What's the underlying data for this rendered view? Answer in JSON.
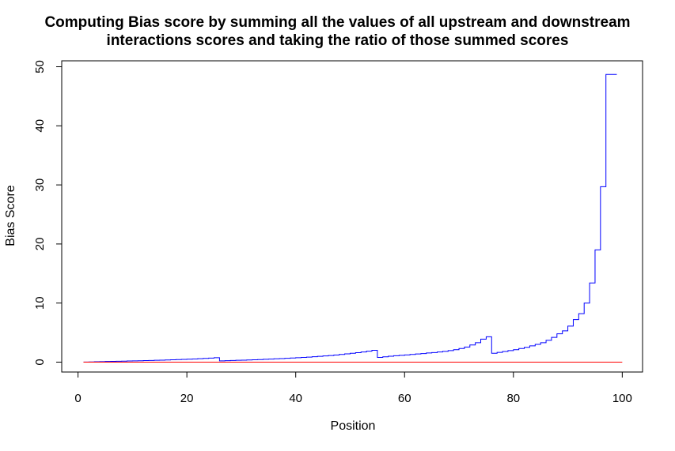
{
  "chart_data": {
    "type": "line",
    "title": [
      "Computing Bias score by summing all the values of all upstream and downstream",
      "interactions scores and taking the ratio of those summed scores"
    ],
    "xlabel": "Position",
    "ylabel": "Bias Score",
    "xlim": [
      1,
      100
    ],
    "ylim": [
      0,
      50
    ],
    "x_ticks": [
      0,
      20,
      40,
      60,
      80,
      100
    ],
    "y_ticks": [
      0,
      10,
      20,
      30,
      40,
      50
    ],
    "grid": false,
    "series": [
      {
        "color": "#0000ff",
        "step": true,
        "x": [
          1,
          2,
          3,
          4,
          5,
          6,
          7,
          8,
          9,
          10,
          11,
          12,
          13,
          14,
          15,
          16,
          17,
          18,
          19,
          20,
          21,
          22,
          23,
          24,
          25,
          26,
          27,
          28,
          29,
          30,
          31,
          32,
          33,
          34,
          35,
          36,
          37,
          38,
          39,
          40,
          41,
          42,
          43,
          44,
          45,
          46,
          47,
          48,
          49,
          50,
          51,
          52,
          53,
          54,
          55,
          56,
          57,
          58,
          59,
          60,
          61,
          62,
          63,
          64,
          65,
          66,
          67,
          68,
          69,
          70,
          71,
          72,
          73,
          74,
          75,
          76,
          77,
          78,
          79,
          80,
          81,
          82,
          83,
          84,
          85,
          86,
          87,
          88,
          89,
          90,
          91,
          92,
          93,
          94,
          95,
          96,
          97,
          98,
          99
        ],
        "y": [
          0.02,
          0.04,
          0.07,
          0.09,
          0.11,
          0.13,
          0.15,
          0.17,
          0.2,
          0.22,
          0.24,
          0.26,
          0.29,
          0.31,
          0.34,
          0.37,
          0.4,
          0.43,
          0.46,
          0.5,
          0.54,
          0.58,
          0.63,
          0.68,
          0.75,
          0.22,
          0.25,
          0.28,
          0.31,
          0.34,
          0.37,
          0.4,
          0.44,
          0.48,
          0.52,
          0.56,
          0.6,
          0.65,
          0.7,
          0.75,
          0.8,
          0.86,
          0.92,
          0.98,
          1.05,
          1.12,
          1.2,
          1.3,
          1.4,
          1.5,
          1.6,
          1.72,
          1.85,
          2.0,
          0.8,
          0.9,
          1.0,
          1.08,
          1.15,
          1.22,
          1.3,
          1.38,
          1.45,
          1.55,
          1.62,
          1.72,
          1.82,
          1.95,
          2.1,
          2.3,
          2.55,
          2.9,
          3.3,
          3.9,
          4.3,
          1.5,
          1.65,
          1.8,
          1.95,
          2.1,
          2.3,
          2.5,
          2.75,
          3.0,
          3.3,
          3.7,
          4.2,
          4.8,
          5.3,
          6.1,
          7.2,
          8.2,
          10.0,
          13.4,
          19.0,
          29.7,
          48.7,
          48.7,
          48.7
        ]
      },
      {
        "color": "#ff0000",
        "step": false,
        "x": [
          1,
          100
        ],
        "y": [
          0,
          0
        ]
      }
    ]
  }
}
